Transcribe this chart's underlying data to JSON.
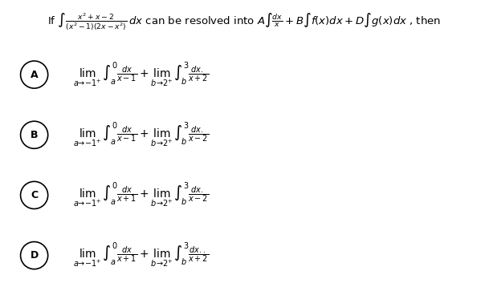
{
  "bg_color": "#ffffff",
  "text_color": "#000000",
  "circle_color": "#000000",
  "title_text": "If $\\int \\frac{x^2+x-2}{(x^2-1)(2x-x^2)}\\,dx$ can be resolved into $A\\int \\frac{dx}{x} + B\\int f(x)dx + D\\int g(x)dx$ , then",
  "options": [
    {
      "label": "A",
      "line1": "$\\lim_{a\\to -1^+}\\int_a^{0} \\frac{dx}{x-1} + \\lim_{b\\to 2^+}\\int_b^{3} \\frac{dx.}{x+2}$"
    },
    {
      "label": "B",
      "line1": "$\\lim_{a\\to -1^+}\\int_a^{0} \\frac{dx}{x-1} + \\lim_{b\\to 2^+}\\int_b^{3} \\frac{dx.}{x-2}$"
    },
    {
      "label": "C",
      "line1": "$\\lim_{a\\to -1^+}\\int_a^{0} \\frac{dx}{x+1} + \\lim_{b\\to 2^+}\\int_b^{3} \\frac{dx.}{x-2}$"
    },
    {
      "label": "D",
      "line1": "$\\lim_{a\\to -1^+}\\int_a^{0} \\frac{dx}{x+1} + \\lim_{b\\to 2^+}\\int_b^{3} \\frac{dx..}{x+2}$"
    }
  ],
  "title_fontsize": 9.5,
  "option_fontsize": 10,
  "label_fontsize": 9,
  "figsize": [
    6.09,
    3.58
  ],
  "dpi": 100
}
